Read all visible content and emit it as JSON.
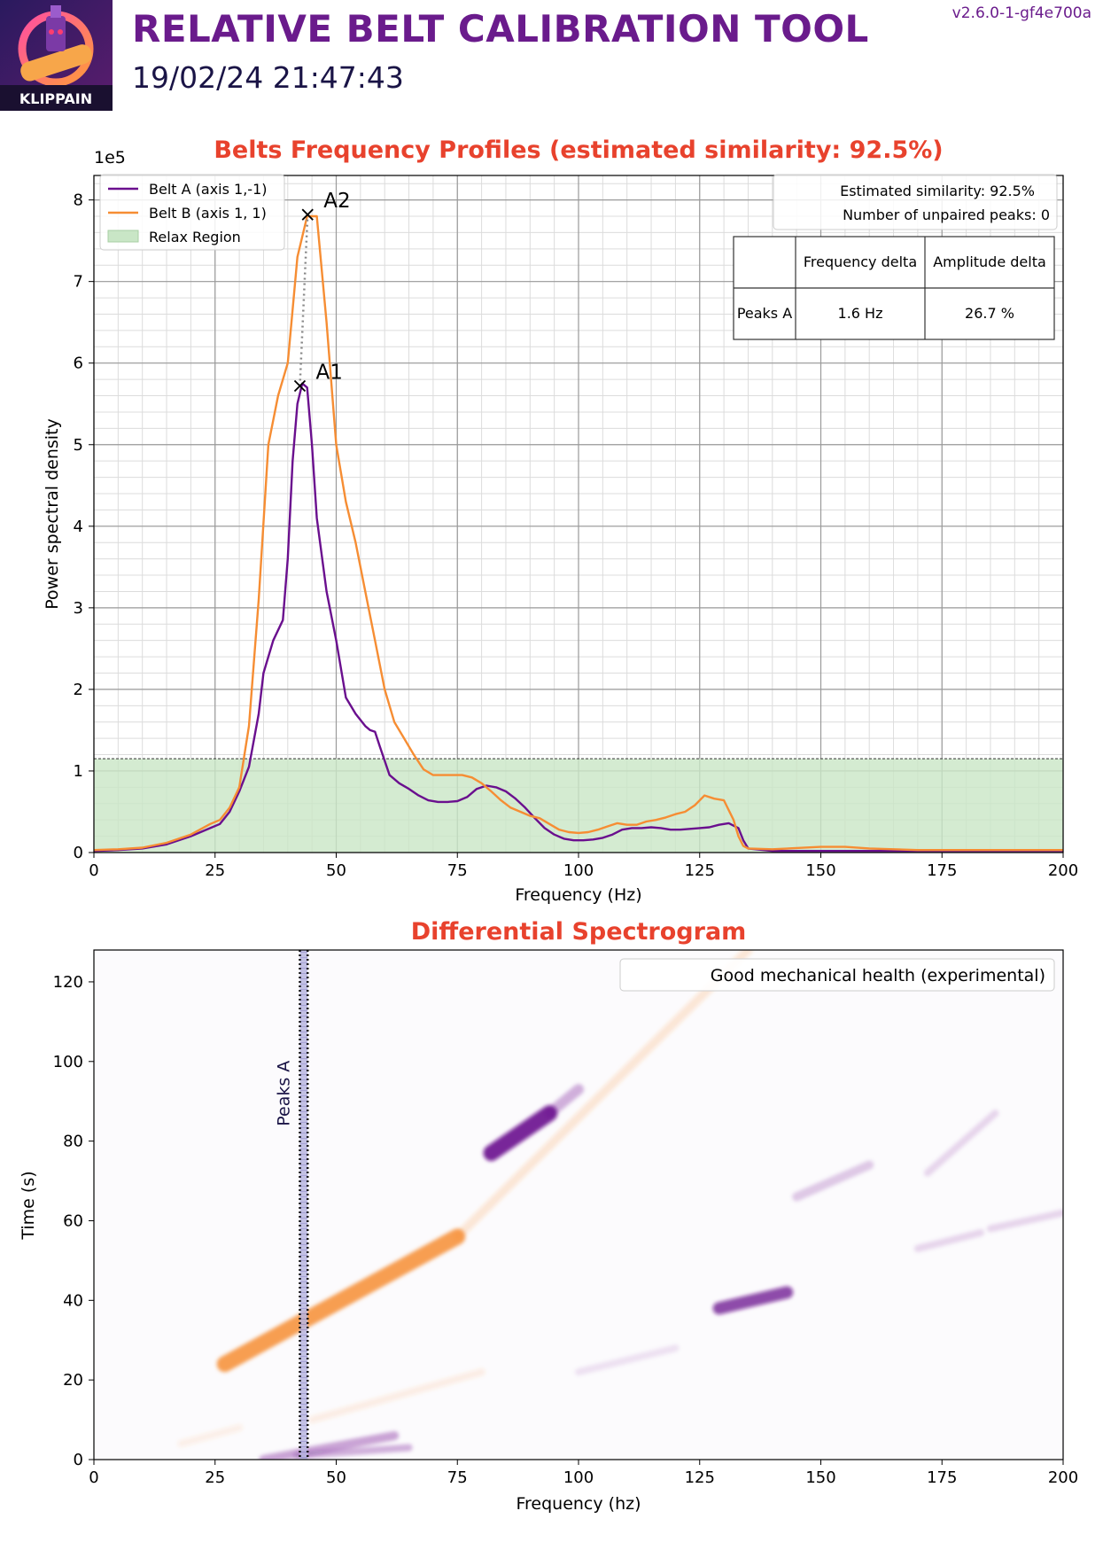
{
  "header": {
    "title": "RELATIVE BELT CALIBRATION TOOL",
    "datetime": "19/02/24 21:47:43",
    "version": "v2.6.0-1-gf4e700a",
    "logo_text": "KLIPPAIN"
  },
  "colors": {
    "belt_a": "#6a0f8e",
    "belt_b": "#f68d33",
    "title": "#e8422d",
    "relax": "#c9e6c6",
    "grid": "#c8c8c8"
  },
  "chart_data": [
    {
      "type": "line",
      "title": "Belts Frequency Profiles (estimated similarity: 92.5%)",
      "xlabel": "Frequency (Hz)",
      "ylabel": "Power spectral density",
      "y_multiplier": "1e5",
      "xlim": [
        0,
        200
      ],
      "ylim": [
        0,
        8.3
      ],
      "xticks": [
        0,
        25,
        50,
        75,
        100,
        125,
        150,
        175,
        200
      ],
      "yticks": [
        0,
        1,
        2,
        3,
        4,
        5,
        6,
        7,
        8
      ],
      "grid": true,
      "legend_position": "top-left",
      "legend": [
        "Belt A (axis 1,-1)",
        "Belt B (axis 1, 1)",
        "Relax Region"
      ],
      "relax_threshold": 1.15,
      "series": [
        {
          "name": "Belt A (axis 1,-1)",
          "color": "#6a0f8e",
          "x": [
            0,
            5,
            10,
            15,
            20,
            24,
            26,
            28,
            30,
            32,
            34,
            35,
            37,
            39,
            40,
            41,
            42,
            43,
            44,
            45,
            46,
            48,
            50,
            52,
            54,
            56,
            57,
            58,
            59,
            61,
            63,
            65,
            67,
            69,
            71,
            73,
            75,
            77,
            79,
            81,
            83,
            85,
            87,
            89,
            91,
            93,
            95,
            97,
            99,
            101,
            103,
            105,
            107,
            109,
            111,
            113,
            115,
            117,
            119,
            121,
            123,
            125,
            127,
            129,
            131,
            133,
            134,
            135,
            140,
            150,
            160,
            170,
            180,
            190,
            200
          ],
          "y": [
            0.02,
            0.03,
            0.05,
            0.1,
            0.2,
            0.3,
            0.35,
            0.5,
            0.75,
            1.05,
            1.7,
            2.2,
            2.6,
            2.85,
            3.6,
            4.8,
            5.5,
            5.75,
            5.7,
            5.0,
            4.1,
            3.2,
            2.6,
            1.9,
            1.7,
            1.55,
            1.5,
            1.48,
            1.3,
            0.95,
            0.85,
            0.78,
            0.7,
            0.64,
            0.62,
            0.62,
            0.63,
            0.68,
            0.78,
            0.82,
            0.8,
            0.75,
            0.66,
            0.55,
            0.42,
            0.3,
            0.22,
            0.17,
            0.15,
            0.15,
            0.16,
            0.18,
            0.22,
            0.28,
            0.3,
            0.3,
            0.31,
            0.3,
            0.28,
            0.28,
            0.29,
            0.3,
            0.31,
            0.34,
            0.36,
            0.3,
            0.15,
            0.05,
            0.02,
            0.02,
            0.02,
            0.02,
            0.02,
            0.02,
            0.02
          ]
        },
        {
          "name": "Belt B (axis 1, 1)",
          "color": "#f68d33",
          "x": [
            0,
            5,
            10,
            15,
            20,
            24,
            26,
            28,
            30,
            32,
            34,
            36,
            38,
            40,
            42,
            44,
            46,
            48,
            50,
            52,
            54,
            56,
            58,
            60,
            62,
            64,
            66,
            68,
            70,
            72,
            74,
            76,
            78,
            80,
            82,
            84,
            86,
            88,
            90,
            92,
            94,
            96,
            98,
            100,
            102,
            104,
            106,
            108,
            110,
            112,
            114,
            116,
            118,
            120,
            122,
            124,
            126,
            128,
            130,
            132,
            133,
            134,
            135,
            140,
            150,
            155,
            160,
            170,
            180,
            190,
            200
          ],
          "y": [
            0.03,
            0.04,
            0.06,
            0.12,
            0.22,
            0.35,
            0.4,
            0.55,
            0.8,
            1.55,
            3.1,
            5.0,
            5.6,
            6.0,
            7.3,
            7.8,
            7.8,
            6.5,
            5.0,
            4.3,
            3.8,
            3.2,
            2.6,
            2.0,
            1.6,
            1.4,
            1.2,
            1.02,
            0.95,
            0.95,
            0.95,
            0.95,
            0.92,
            0.85,
            0.75,
            0.64,
            0.55,
            0.5,
            0.45,
            0.42,
            0.35,
            0.28,
            0.25,
            0.24,
            0.25,
            0.28,
            0.32,
            0.36,
            0.34,
            0.34,
            0.38,
            0.4,
            0.43,
            0.47,
            0.5,
            0.58,
            0.7,
            0.66,
            0.64,
            0.4,
            0.2,
            0.08,
            0.05,
            0.04,
            0.07,
            0.07,
            0.05,
            0.03,
            0.03,
            0.03,
            0.03
          ]
        }
      ],
      "peaks": [
        {
          "label": "A1",
          "x": 42.5,
          "y": 5.72,
          "series": "Belt A (axis 1,-1)"
        },
        {
          "label": "A2",
          "x": 44.1,
          "y": 7.82,
          "series": "Belt B (axis 1, 1)"
        }
      ],
      "info_box": [
        "Estimated similarity: 92.5%",
        "Number of unpaired peaks: 0"
      ],
      "table": {
        "headers": [
          "",
          "Frequency delta",
          "Amplitude delta"
        ],
        "rows": [
          [
            "Peaks A",
            "1.6 Hz",
            "26.7 %"
          ]
        ]
      }
    },
    {
      "type": "heatmap",
      "title": "Differential Spectrogram",
      "xlabel": "Frequency (hz)",
      "ylabel": "Time (s)",
      "xlim": [
        0,
        200
      ],
      "ylim": [
        0,
        128
      ],
      "xticks": [
        0,
        25,
        50,
        75,
        100,
        125,
        150,
        175,
        200
      ],
      "yticks": [
        0,
        20,
        40,
        60,
        80,
        100,
        120
      ],
      "legend_position": "top-right",
      "legend": [
        "Good mechanical health (experimental)"
      ],
      "peak_band": {
        "label": "Peaks A",
        "x_start": 42.5,
        "x_end": 44.1
      },
      "streaks": [
        {
          "color": "belt_b",
          "x1": 27,
          "y1": 24,
          "x2": 75,
          "y2": 56,
          "width": 4.5,
          "opacity": 0.85
        },
        {
          "color": "belt_b",
          "x1": 75,
          "y1": 56,
          "x2": 135,
          "y2": 128,
          "width": 2.5,
          "opacity": 0.18
        },
        {
          "color": "belt_a",
          "x1": 82,
          "y1": 77,
          "x2": 94,
          "y2": 87,
          "width": 4.5,
          "opacity": 0.9
        },
        {
          "color": "belt_a",
          "x1": 94,
          "y1": 87,
          "x2": 100,
          "y2": 93,
          "width": 3,
          "opacity": 0.3
        },
        {
          "color": "belt_a",
          "x1": 129,
          "y1": 38,
          "x2": 143,
          "y2": 42,
          "width": 3.5,
          "opacity": 0.75
        },
        {
          "color": "belt_a",
          "x1": 145,
          "y1": 66,
          "x2": 160,
          "y2": 74,
          "width": 2.5,
          "opacity": 0.2
        },
        {
          "color": "belt_a",
          "x1": 172,
          "y1": 72,
          "x2": 186,
          "y2": 87,
          "width": 2,
          "opacity": 0.15
        },
        {
          "color": "belt_a",
          "x1": 170,
          "y1": 53,
          "x2": 183,
          "y2": 57,
          "width": 2,
          "opacity": 0.15
        },
        {
          "color": "belt_a",
          "x1": 185,
          "y1": 58,
          "x2": 200,
          "y2": 62,
          "width": 2,
          "opacity": 0.15
        },
        {
          "color": "belt_a",
          "x1": 35,
          "y1": 0,
          "x2": 62,
          "y2": 6,
          "width": 2.5,
          "opacity": 0.35
        },
        {
          "color": "belt_a",
          "x1": 42,
          "y1": 1,
          "x2": 65,
          "y2": 3,
          "width": 2,
          "opacity": 0.3
        },
        {
          "color": "belt_b",
          "x1": 45,
          "y1": 10,
          "x2": 80,
          "y2": 22,
          "width": 2,
          "opacity": 0.12
        },
        {
          "color": "belt_b",
          "x1": 18,
          "y1": 4,
          "x2": 30,
          "y2": 8,
          "width": 2,
          "opacity": 0.1
        },
        {
          "color": "belt_a",
          "x1": 100,
          "y1": 22,
          "x2": 120,
          "y2": 28,
          "width": 2,
          "opacity": 0.1
        }
      ]
    }
  ]
}
